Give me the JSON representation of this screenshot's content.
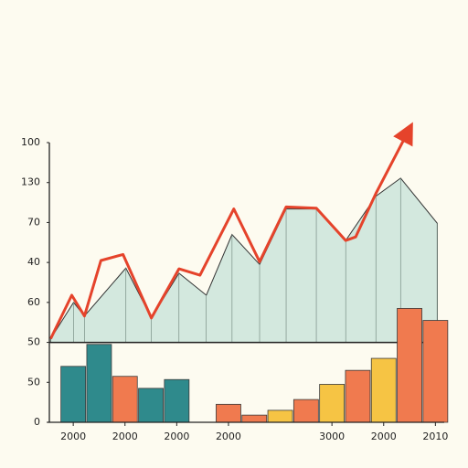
{
  "chart_data": [
    {
      "type": "bar",
      "categories": [
        "2000",
        null,
        "2000",
        null,
        "2000",
        null,
        "2000",
        null,
        null,
        null,
        "3000",
        null,
        "2000",
        null,
        "2010"
      ],
      "values": [
        1.4,
        1.95,
        1.15,
        0.85,
        1.07,
        null,
        0.45,
        0.18,
        0.3,
        0.57,
        0.95,
        1.3,
        1.6,
        2.85,
        2.55
      ],
      "colors": [
        "#2f8a8c",
        "#2f8a8c",
        "#f07a4f",
        "#2f8a8c",
        "#2f8a8c",
        null,
        "#f07a4f",
        "#f07a4f",
        "#f6c444",
        "#f07a4f",
        "#f6c444",
        "#f07a4f",
        "#f6c444",
        "#f07a4f",
        "#f07a4f"
      ],
      "ylim": [
        0,
        7
      ],
      "yticks": [
        {
          "value": 0,
          "label": "0"
        },
        {
          "value": 1,
          "label": "50"
        },
        {
          "value": 2,
          "label": "50"
        },
        {
          "value": 3,
          "label": "60"
        },
        {
          "value": 4,
          "label": "40"
        },
        {
          "value": 5,
          "label": "70"
        },
        {
          "value": 6,
          "label": "130"
        },
        {
          "value": 7,
          "label": "100"
        }
      ]
    },
    {
      "type": "area-line",
      "xlim": [
        -0.4,
        14.6
      ],
      "ylim": [
        0,
        7
      ],
      "series": [
        {
          "kind": "area",
          "color": "#d3e8de",
          "x": [
            -0.35,
            0.53,
            0.95,
            2.54,
            3.52,
            4.58,
            5.63,
            6.62,
            7.68,
            8.7,
            9.86,
            10.99,
            12.15,
            13.1,
            14.51
          ],
          "values": [
            2.09,
            3.0,
            2.66,
            3.86,
            2.61,
            3.73,
            3.18,
            4.7,
            3.95,
            5.34,
            5.34,
            4.55,
            5.66,
            6.11,
            4.98
          ]
        },
        {
          "kind": "line",
          "color": "#e5432b",
          "x": [
            -0.35,
            0.46,
            0.95,
            1.58,
            2.43,
            3.52,
            4.58,
            5.39,
            6.69,
            7.68,
            8.7,
            9.86,
            10.99,
            11.37,
            12.15,
            13.38
          ],
          "values": [
            2.09,
            3.18,
            2.66,
            4.05,
            4.2,
            2.61,
            3.84,
            3.68,
            5.34,
            4.02,
            5.39,
            5.36,
            4.55,
            4.64,
            5.73,
            7.27
          ]
        }
      ]
    }
  ]
}
